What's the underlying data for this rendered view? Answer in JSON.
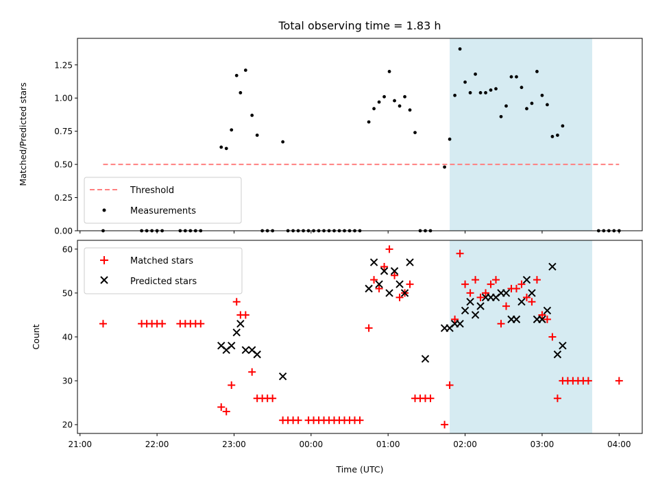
{
  "chart_data": [
    {
      "type": "scatter",
      "title": "Total observing time = 1.83 h",
      "ylabel": "Matched/Predicted stars",
      "xlabel": "",
      "xlim": [
        "2024-01-01T20:58",
        "2024-01-02T04:18"
      ],
      "ylim": [
        0,
        1.45
      ],
      "yticks": [
        0,
        0.25,
        0.5,
        0.75,
        1.0,
        1.25
      ],
      "ytick_labels": [
        "0.00",
        "0.25",
        "0.50",
        "0.75",
        "1.00",
        "1.25"
      ],
      "xticks": [
        "21:00",
        "22:00",
        "23:00",
        "00:00",
        "01:00",
        "02:00",
        "03:00",
        "04:00"
      ],
      "xtick_labels_visible": false,
      "shaded_span": [
        "01:48",
        "03:39"
      ],
      "shaded_color": "#add8e6",
      "legend_position": "lower-left",
      "threshold": {
        "name": "Threshold",
        "value": 0.5,
        "x_range": [
          "21:18",
          "04:00"
        ],
        "color": "#ff7f7f",
        "style": "dashed"
      },
      "series": [
        {
          "name": "Measurements",
          "marker": "dot",
          "color": "#000000",
          "points": [
            [
              "21:18",
              0
            ],
            [
              "21:48",
              0
            ],
            [
              "21:52",
              0
            ],
            [
              "21:56",
              0
            ],
            [
              "22:00",
              0
            ],
            [
              "22:04",
              0
            ],
            [
              "22:18",
              0
            ],
            [
              "22:22",
              0
            ],
            [
              "22:26",
              0
            ],
            [
              "22:30",
              0
            ],
            [
              "22:34",
              0
            ],
            [
              "22:50",
              0.63
            ],
            [
              "22:54",
              0.62
            ],
            [
              "22:58",
              0.76
            ],
            [
              "23:02",
              1.17
            ],
            [
              "23:05",
              1.04
            ],
            [
              "23:09",
              1.21
            ],
            [
              "23:14",
              0.87
            ],
            [
              "23:18",
              0.72
            ],
            [
              "23:22",
              0
            ],
            [
              "23:26",
              0
            ],
            [
              "23:30",
              0
            ],
            [
              "23:38",
              0.67
            ],
            [
              "23:42",
              0
            ],
            [
              "23:46",
              0
            ],
            [
              "23:50",
              0
            ],
            [
              "23:54",
              0
            ],
            [
              "23:58",
              0
            ],
            [
              "00:02",
              0
            ],
            [
              "00:06",
              0
            ],
            [
              "00:10",
              0
            ],
            [
              "00:14",
              0
            ],
            [
              "00:18",
              0
            ],
            [
              "00:22",
              0
            ],
            [
              "00:26",
              0
            ],
            [
              "00:30",
              0
            ],
            [
              "00:34",
              0
            ],
            [
              "00:38",
              0
            ],
            [
              "00:45",
              0.82
            ],
            [
              "00:49",
              0.92
            ],
            [
              "00:53",
              0.97
            ],
            [
              "00:57",
              1.01
            ],
            [
              "01:01",
              1.2
            ],
            [
              "01:05",
              0.98
            ],
            [
              "01:09",
              0.94
            ],
            [
              "01:13",
              1.01
            ],
            [
              "01:17",
              0.91
            ],
            [
              "01:21",
              0.74
            ],
            [
              "01:25",
              0
            ],
            [
              "01:29",
              0
            ],
            [
              "01:33",
              0
            ],
            [
              "01:44",
              0.48
            ],
            [
              "01:48",
              0.69
            ],
            [
              "01:52",
              1.02
            ],
            [
              "01:56",
              1.37
            ],
            [
              "02:00",
              1.12
            ],
            [
              "02:04",
              1.04
            ],
            [
              "02:08",
              1.18
            ],
            [
              "02:12",
              1.04
            ],
            [
              "02:16",
              1.04
            ],
            [
              "02:20",
              1.06
            ],
            [
              "02:24",
              1.07
            ],
            [
              "02:28",
              0.86
            ],
            [
              "02:32",
              0.94
            ],
            [
              "02:36",
              1.16
            ],
            [
              "02:40",
              1.16
            ],
            [
              "02:44",
              1.08
            ],
            [
              "02:48",
              0.92
            ],
            [
              "02:52",
              0.96
            ],
            [
              "02:56",
              1.2
            ],
            [
              "03:00",
              1.02
            ],
            [
              "03:04",
              0.95
            ],
            [
              "03:08",
              0.71
            ],
            [
              "03:12",
              0.72
            ],
            [
              "03:16",
              0.79
            ],
            [
              "03:44",
              0
            ],
            [
              "03:48",
              0
            ],
            [
              "03:52",
              0
            ],
            [
              "03:56",
              0
            ],
            [
              "04:00",
              0
            ]
          ]
        }
      ]
    },
    {
      "type": "scatter",
      "title": "",
      "xlabel": "Time (UTC)",
      "ylabel": "Count",
      "xlim": [
        "2024-01-01T20:58",
        "2024-01-02T04:18"
      ],
      "ylim": [
        18,
        62
      ],
      "yticks": [
        20,
        30,
        40,
        50,
        60
      ],
      "ytick_labels": [
        "20",
        "30",
        "40",
        "50",
        "60"
      ],
      "xticks": [
        "21:00",
        "22:00",
        "23:00",
        "00:00",
        "01:00",
        "02:00",
        "03:00",
        "04:00"
      ],
      "xtick_labels": [
        "21:00",
        "22:00",
        "23:00",
        "00:00",
        "01:00",
        "02:00",
        "03:00",
        "04:00"
      ],
      "shaded_span": [
        "01:48",
        "03:39"
      ],
      "shaded_color": "#add8e6",
      "legend_position": "upper-left",
      "series": [
        {
          "name": "Matched stars",
          "marker": "plus",
          "color": "#ff0000",
          "points": [
            [
              "21:18",
              43
            ],
            [
              "21:48",
              43
            ],
            [
              "21:52",
              43
            ],
            [
              "21:56",
              43
            ],
            [
              "22:00",
              43
            ],
            [
              "22:04",
              43
            ],
            [
              "22:18",
              43
            ],
            [
              "22:22",
              43
            ],
            [
              "22:26",
              43
            ],
            [
              "22:30",
              43
            ],
            [
              "22:34",
              43
            ],
            [
              "22:50",
              24
            ],
            [
              "22:54",
              23
            ],
            [
              "22:58",
              29
            ],
            [
              "23:02",
              48
            ],
            [
              "23:05",
              45
            ],
            [
              "23:09",
              45
            ],
            [
              "23:14",
              32
            ],
            [
              "23:18",
              26
            ],
            [
              "23:22",
              26
            ],
            [
              "23:26",
              26
            ],
            [
              "23:30",
              26
            ],
            [
              "23:38",
              21
            ],
            [
              "23:42",
              21
            ],
            [
              "23:46",
              21
            ],
            [
              "23:50",
              21
            ],
            [
              "23:58",
              21
            ],
            [
              "00:02",
              21
            ],
            [
              "00:06",
              21
            ],
            [
              "00:10",
              21
            ],
            [
              "00:14",
              21
            ],
            [
              "00:18",
              21
            ],
            [
              "00:22",
              21
            ],
            [
              "00:26",
              21
            ],
            [
              "00:30",
              21
            ],
            [
              "00:34",
              21
            ],
            [
              "00:38",
              21
            ],
            [
              "00:45",
              42
            ],
            [
              "00:49",
              53
            ],
            [
              "00:53",
              51
            ],
            [
              "00:57",
              56
            ],
            [
              "01:01",
              60
            ],
            [
              "01:05",
              54
            ],
            [
              "01:09",
              49
            ],
            [
              "01:13",
              50
            ],
            [
              "01:17",
              52
            ],
            [
              "01:21",
              26
            ],
            [
              "01:25",
              26
            ],
            [
              "01:29",
              26
            ],
            [
              "01:33",
              26
            ],
            [
              "01:44",
              20
            ],
            [
              "01:48",
              29
            ],
            [
              "01:52",
              44
            ],
            [
              "01:56",
              59
            ],
            [
              "02:00",
              52
            ],
            [
              "02:04",
              50
            ],
            [
              "02:08",
              53
            ],
            [
              "02:12",
              49
            ],
            [
              "02:16",
              50
            ],
            [
              "02:20",
              52
            ],
            [
              "02:24",
              53
            ],
            [
              "02:28",
              43
            ],
            [
              "02:32",
              47
            ],
            [
              "02:36",
              51
            ],
            [
              "02:40",
              51
            ],
            [
              "02:44",
              52
            ],
            [
              "02:48",
              49
            ],
            [
              "02:52",
              48
            ],
            [
              "02:56",
              53
            ],
            [
              "03:00",
              45
            ],
            [
              "03:04",
              44
            ],
            [
              "03:08",
              40
            ],
            [
              "03:12",
              26
            ],
            [
              "03:16",
              30
            ],
            [
              "03:20",
              30
            ],
            [
              "03:24",
              30
            ],
            [
              "03:28",
              30
            ],
            [
              "03:32",
              30
            ],
            [
              "03:36",
              30
            ],
            [
              "04:00",
              30
            ]
          ]
        },
        {
          "name": "Predicted stars",
          "marker": "x",
          "color": "#000000",
          "points": [
            [
              "22:50",
              38
            ],
            [
              "22:54",
              37
            ],
            [
              "22:58",
              38
            ],
            [
              "23:02",
              41
            ],
            [
              "23:05",
              43
            ],
            [
              "23:09",
              37
            ],
            [
              "23:14",
              37
            ],
            [
              "23:18",
              36
            ],
            [
              "23:38",
              31
            ],
            [
              "00:45",
              51
            ],
            [
              "00:49",
              57
            ],
            [
              "00:53",
              52
            ],
            [
              "00:57",
              55
            ],
            [
              "01:01",
              50
            ],
            [
              "01:05",
              55
            ],
            [
              "01:09",
              52
            ],
            [
              "01:13",
              50
            ],
            [
              "01:17",
              57
            ],
            [
              "01:29",
              35
            ],
            [
              "01:44",
              42
            ],
            [
              "01:48",
              42
            ],
            [
              "01:52",
              43
            ],
            [
              "01:56",
              43
            ],
            [
              "02:00",
              46
            ],
            [
              "02:04",
              48
            ],
            [
              "02:08",
              45
            ],
            [
              "02:12",
              47
            ],
            [
              "02:16",
              49
            ],
            [
              "02:20",
              49
            ],
            [
              "02:24",
              49
            ],
            [
              "02:28",
              50
            ],
            [
              "02:32",
              50
            ],
            [
              "02:36",
              44
            ],
            [
              "02:40",
              44
            ],
            [
              "02:44",
              48
            ],
            [
              "02:48",
              53
            ],
            [
              "02:52",
              50
            ],
            [
              "02:56",
              44
            ],
            [
              "03:00",
              44
            ],
            [
              "03:04",
              46
            ],
            [
              "03:08",
              56
            ],
            [
              "03:12",
              36
            ],
            [
              "03:16",
              38
            ]
          ]
        }
      ]
    }
  ]
}
